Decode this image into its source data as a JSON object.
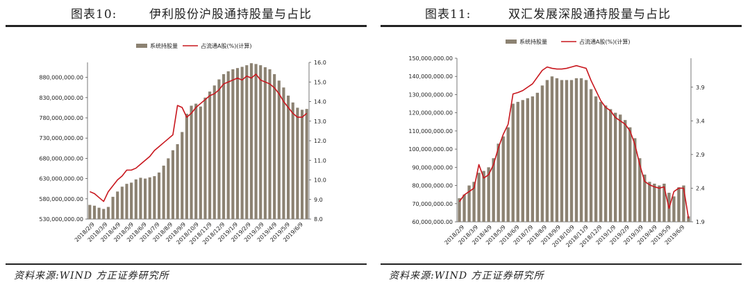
{
  "colors": {
    "bar": "#8c8272",
    "line": "#c8161d",
    "axis": "#555555",
    "rule": "#222222"
  },
  "figures": [
    {
      "title_num": "图表10:",
      "title_text": "伊利股份沪股通持股量与占比",
      "source": "资料来源:WIND 方正证券研究所",
      "legend": {
        "bar_label": "系统持股量",
        "line_label": "占流通A股(%)(计算)"
      },
      "chart_data": {
        "type": "bar",
        "y_left_ticks": [
          "880,000,000.00",
          "830,000,000.00",
          "780,000,000.00",
          "730,000,000.00",
          "680,000,000.00",
          "630,000,000.00",
          "580,000,000.00",
          "530,000,000.00"
        ],
        "y_left_values": [
          880000000,
          830000000,
          780000000,
          730000000,
          680000000,
          630000000,
          580000000,
          530000000
        ],
        "ylim_left": [
          530000000,
          917000000
        ],
        "y_right_ticks": [
          "16.0",
          "15.0",
          "14.0",
          "13.0",
          "12.0",
          "11.0",
          "10.0",
          "9.0",
          "8.0"
        ],
        "ylim_right": [
          8.0,
          16.0
        ],
        "x_ticks": [
          "2018/2/9",
          "2018/3/9",
          "2018/4/9",
          "2018/5/9",
          "2018/6/9",
          "2018/7/9",
          "2018/8/9",
          "2018/9/9",
          "2018/10/9",
          "2018/11/9",
          "2018/12/9",
          "2019/1/9",
          "2019/2/9",
          "2019/3/9",
          "2019/4/9",
          "2019/5/9",
          "2019/6/9"
        ],
        "bar_series": {
          "name": "系统持股量",
          "values": [
            565000000,
            563000000,
            558000000,
            555000000,
            560000000,
            585000000,
            598000000,
            610000000,
            617000000,
            620000000,
            628000000,
            632000000,
            630000000,
            633000000,
            636000000,
            645000000,
            662000000,
            680000000,
            700000000,
            715000000,
            745000000,
            790000000,
            810000000,
            815000000,
            808000000,
            830000000,
            845000000,
            860000000,
            875000000,
            888000000,
            895000000,
            900000000,
            903000000,
            906000000,
            910000000,
            915000000,
            913000000,
            910000000,
            905000000,
            900000000,
            888000000,
            872000000,
            855000000,
            835000000,
            818000000,
            805000000,
            800000000,
            802000000
          ]
        },
        "line_series": {
          "name": "占流通A股(%)(计算)",
          "values": [
            9.4,
            9.3,
            9.1,
            8.9,
            9.4,
            9.7,
            10.0,
            10.2,
            10.5,
            10.5,
            10.6,
            10.8,
            11.0,
            11.2,
            11.5,
            11.7,
            11.9,
            12.1,
            12.3,
            13.8,
            13.7,
            13.2,
            13.4,
            13.7,
            13.9,
            14.1,
            14.3,
            14.4,
            14.6,
            14.9,
            15.0,
            15.1,
            15.2,
            15.1,
            15.3,
            15.2,
            15.4,
            15.1,
            15.0,
            14.9,
            14.7,
            14.4,
            14.0,
            13.7,
            13.4,
            13.2,
            13.2,
            13.4
          ]
        }
      }
    },
    {
      "title_num": "图表11:",
      "title_text": "双汇发展深股通持股量与占比",
      "source": "资料来源:WIND 方正证券研究所",
      "legend": {
        "bar_label": "系统持股量",
        "line_label": "占流通A股(%)(计算)"
      },
      "chart_data": {
        "type": "bar",
        "y_left_ticks": [
          "150,000,000.00",
          "140,000,000.00",
          "130,000,000.00",
          "120,000,000.00",
          "110,000,000.00",
          "100,000,000.00",
          "90,000,000.00",
          "80,000,000.00",
          "70,000,000.00",
          "60,000,000.00"
        ],
        "y_left_values": [
          150000000,
          140000000,
          130000000,
          120000000,
          110000000,
          100000000,
          90000000,
          80000000,
          70000000,
          60000000
        ],
        "ylim_left": [
          60000000,
          150000000
        ],
        "y_right_ticks": [
          "3.9",
          "3.4",
          "2.9",
          "2.4",
          "1.9"
        ],
        "ylim_right": [
          1.9,
          4.33
        ],
        "x_ticks": [
          "2018/2/9",
          "2018/3/9",
          "2018/4/9",
          "2018/5/9",
          "2018/6/9",
          "2018/7/9",
          "2018/8/9",
          "2018/9/9",
          "2018/10/9",
          "2018/11/9",
          "2018/12/9",
          "2019/1/9",
          "2019/2/9",
          "2019/3/9",
          "2019/4/9",
          "2019/5/9",
          "2019/6/9"
        ],
        "bar_series": {
          "name": "系统持股量",
          "values": [
            73000000,
            75000000,
            80000000,
            82000000,
            87000000,
            88000000,
            90000000,
            95000000,
            103000000,
            107000000,
            112000000,
            125000000,
            126000000,
            127000000,
            128000000,
            129000000,
            131000000,
            135000000,
            138000000,
            140000000,
            139000000,
            138000000,
            138000000,
            138000000,
            139000000,
            139000000,
            138000000,
            133000000,
            129000000,
            126000000,
            124000000,
            122000000,
            120000000,
            119000000,
            116000000,
            112000000,
            106000000,
            95000000,
            86000000,
            82000000,
            81000000,
            80000000,
            81000000,
            76000000,
            74000000,
            79000000,
            80000000,
            63000000
          ]
        },
        "line_series": {
          "name": "占流通A股(%)(计算)",
          "values": [
            2.2,
            2.3,
            2.35,
            2.4,
            2.75,
            2.55,
            2.6,
            2.75,
            3.0,
            3.2,
            3.35,
            3.8,
            3.82,
            3.85,
            3.9,
            3.95,
            4.05,
            4.15,
            4.2,
            4.18,
            4.17,
            4.17,
            4.18,
            4.2,
            4.22,
            4.2,
            4.18,
            4.0,
            3.85,
            3.7,
            3.6,
            3.55,
            3.45,
            3.4,
            3.35,
            3.25,
            3.05,
            2.75,
            2.5,
            2.45,
            2.42,
            2.4,
            2.42,
            2.1,
            2.35,
            2.4,
            2.4,
            1.95
          ]
        }
      }
    }
  ]
}
